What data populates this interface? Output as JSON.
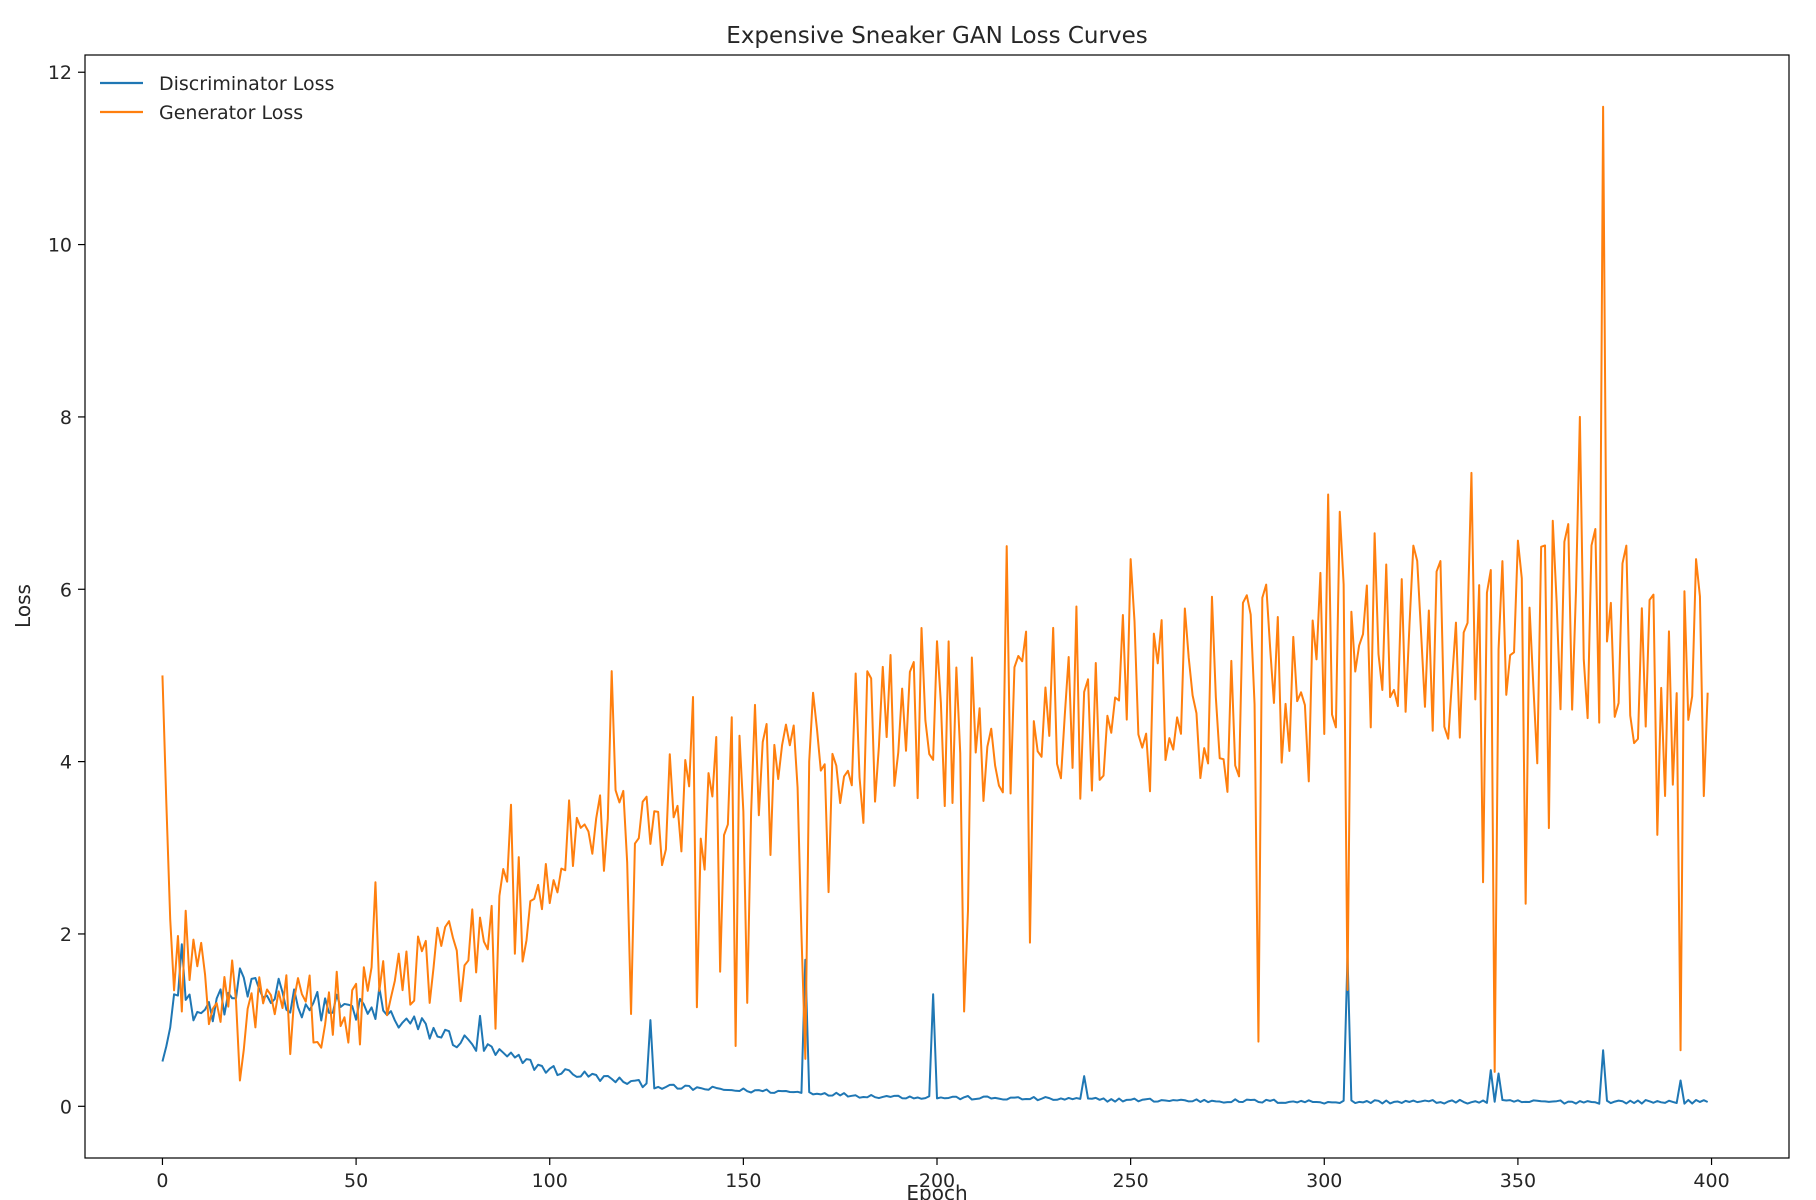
{
  "chart_data": {
    "type": "line",
    "title": "Expensive Sneaker GAN Loss Curves",
    "xlabel": "Epoch",
    "ylabel": "Loss",
    "xlim": [
      -20,
      420
    ],
    "ylim": [
      -0.6,
      12.2
    ],
    "xticks": [
      0,
      50,
      100,
      150,
      200,
      250,
      300,
      350,
      400
    ],
    "yticks": [
      0,
      2,
      4,
      6,
      8,
      10,
      12
    ],
    "grid": false,
    "legend": "top-left",
    "n_epochs": 400,
    "series": [
      {
        "name": "Discriminator Loss",
        "color": "#1f77b4",
        "base": [
          [
            0,
            0.55
          ],
          [
            3,
            1.3
          ],
          [
            5,
            1.2
          ],
          [
            10,
            1.05
          ],
          [
            20,
            1.3
          ],
          [
            30,
            1.25
          ],
          [
            40,
            1.15
          ],
          [
            50,
            1.1
          ],
          [
            60,
            1.0
          ],
          [
            70,
            0.85
          ],
          [
            80,
            0.7
          ],
          [
            90,
            0.55
          ],
          [
            100,
            0.42
          ],
          [
            110,
            0.35
          ],
          [
            120,
            0.28
          ],
          [
            130,
            0.22
          ],
          [
            140,
            0.2
          ],
          [
            150,
            0.18
          ],
          [
            160,
            0.17
          ],
          [
            170,
            0.15
          ],
          [
            180,
            0.12
          ],
          [
            200,
            0.1
          ],
          [
            250,
            0.07
          ],
          [
            300,
            0.05
          ],
          [
            350,
            0.05
          ],
          [
            399,
            0.05
          ]
        ],
        "spikes": [
          [
            0,
            0.52
          ],
          [
            3,
            1.3
          ],
          [
            5,
            1.88
          ],
          [
            20,
            1.6
          ],
          [
            30,
            1.48
          ],
          [
            56,
            1.38
          ],
          [
            82,
            1.05
          ],
          [
            126,
            1.0
          ],
          [
            166,
            1.7
          ],
          [
            199,
            1.3
          ],
          [
            238,
            0.35
          ],
          [
            306,
            1.75
          ],
          [
            343,
            0.42
          ],
          [
            345,
            0.38
          ],
          [
            372,
            0.65
          ],
          [
            392,
            0.3
          ],
          [
            399,
            0.05
          ]
        ],
        "noise": 0.15
      },
      {
        "name": "Generator Loss",
        "color": "#ff7f0e",
        "base": [
          [
            0,
            5.0
          ],
          [
            2,
            2.0
          ],
          [
            5,
            1.8
          ],
          [
            10,
            1.6
          ],
          [
            20,
            1.1
          ],
          [
            30,
            1.05
          ],
          [
            40,
            1.1
          ],
          [
            50,
            1.1
          ],
          [
            60,
            1.4
          ],
          [
            70,
            1.6
          ],
          [
            80,
            1.9
          ],
          [
            90,
            2.2
          ],
          [
            100,
            2.6
          ],
          [
            110,
            2.9
          ],
          [
            120,
            3.1
          ],
          [
            130,
            3.3
          ],
          [
            140,
            3.6
          ],
          [
            150,
            3.7
          ],
          [
            160,
            3.9
          ],
          [
            170,
            4.0
          ],
          [
            180,
            4.2
          ],
          [
            190,
            4.3
          ],
          [
            200,
            4.4
          ],
          [
            220,
            4.5
          ],
          [
            250,
            4.7
          ],
          [
            280,
            4.9
          ],
          [
            300,
            5.2
          ],
          [
            320,
            5.3
          ],
          [
            340,
            5.5
          ],
          [
            360,
            5.7
          ],
          [
            380,
            5.4
          ],
          [
            399,
            4.8
          ]
        ],
        "spikes": [
          [
            0,
            5.0
          ],
          [
            5,
            1.1
          ],
          [
            20,
            0.3
          ],
          [
            55,
            2.6
          ],
          [
            86,
            0.9
          ],
          [
            90,
            3.5
          ],
          [
            105,
            3.55
          ],
          [
            116,
            5.05
          ],
          [
            137,
            4.75
          ],
          [
            138,
            1.15
          ],
          [
            148,
            0.7
          ],
          [
            149,
            4.3
          ],
          [
            151,
            1.2
          ],
          [
            166,
            0.55
          ],
          [
            167,
            4.0
          ],
          [
            186,
            5.1
          ],
          [
            196,
            5.55
          ],
          [
            207,
            1.1
          ],
          [
            218,
            6.5
          ],
          [
            224,
            1.9
          ],
          [
            236,
            5.8
          ],
          [
            250,
            6.35
          ],
          [
            283,
            0.75
          ],
          [
            301,
            7.1
          ],
          [
            304,
            6.9
          ],
          [
            306,
            1.35
          ],
          [
            313,
            6.65
          ],
          [
            338,
            7.35
          ],
          [
            341,
            2.6
          ],
          [
            344,
            0.4
          ],
          [
            345,
            5.3
          ],
          [
            352,
            2.35
          ],
          [
            366,
            8.0
          ],
          [
            372,
            11.6
          ],
          [
            377,
            6.3
          ],
          [
            386,
            3.15
          ],
          [
            392,
            0.65
          ],
          [
            396,
            6.35
          ],
          [
            398,
            3.6
          ],
          [
            399,
            4.8
          ]
        ],
        "noise": 0.9
      }
    ]
  }
}
